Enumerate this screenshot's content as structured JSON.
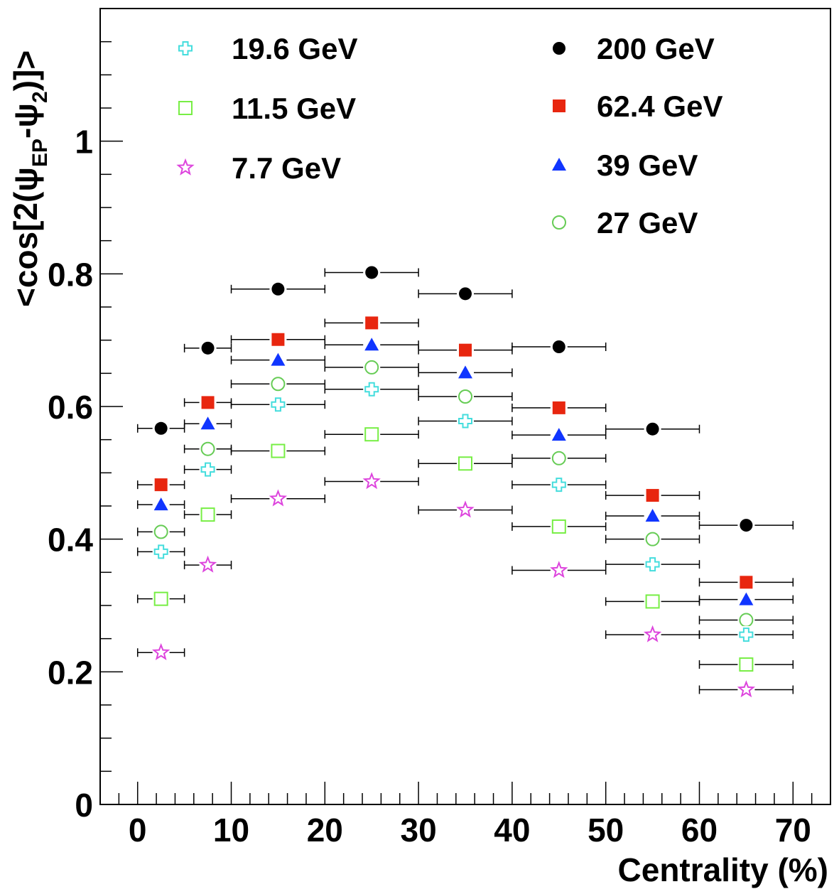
{
  "chart_data": {
    "type": "scatter",
    "x_bin_edges": [
      0,
      5,
      10,
      20,
      30,
      40,
      50,
      60,
      70
    ],
    "x": [
      2.5,
      7.5,
      15,
      25,
      35,
      45,
      55,
      65
    ],
    "xlim": [
      -4,
      74
    ],
    "ylim": [
      0,
      1.2
    ],
    "xticks": [
      0,
      10,
      20,
      30,
      40,
      50,
      60,
      70
    ],
    "xtick_labels": [
      "0",
      "10",
      "20",
      "30",
      "40",
      "50",
      "60",
      "70"
    ],
    "yticks": [
      0,
      0.2,
      0.4,
      0.6,
      0.8,
      1.0
    ],
    "ytick_labels": [
      "0",
      "0.2",
      "0.4",
      "0.6",
      "0.8",
      "1"
    ],
    "xlabel": "Centrality (%)",
    "ylabel": {
      "prefix": "<cos[2(ψ",
      "sub1": "EP",
      "mid": "-ψ",
      "sub2": "2",
      "suffix": ")]>"
    },
    "grid": false,
    "legend_placement": "top",
    "series": [
      {
        "name": "200 GeV",
        "marker": "circle-filled",
        "color": "#000000",
        "values": [
          0.567,
          0.688,
          0.777,
          0.802,
          0.77,
          0.69,
          0.566,
          0.421
        ]
      },
      {
        "name": "62.4 GeV",
        "marker": "square-filled",
        "color": "#e8260f",
        "values": [
          0.482,
          0.606,
          0.701,
          0.726,
          0.685,
          0.598,
          0.466,
          0.335
        ]
      },
      {
        "name": "39 GeV",
        "marker": "triangle-filled",
        "color": "#1035ff",
        "values": [
          0.452,
          0.574,
          0.67,
          0.693,
          0.651,
          0.557,
          0.435,
          0.309
        ]
      },
      {
        "name": "27 GeV",
        "marker": "circle-open",
        "color": "#66cc55",
        "values": [
          0.411,
          0.536,
          0.634,
          0.659,
          0.615,
          0.522,
          0.4,
          0.278
        ]
      },
      {
        "name": "19.6 GeV",
        "marker": "cross-open",
        "color": "#44dddd",
        "values": [
          0.381,
          0.505,
          0.603,
          0.626,
          0.578,
          0.482,
          0.362,
          0.256
        ]
      },
      {
        "name": "11.5 GeV",
        "marker": "square-open",
        "color": "#77ee44",
        "values": [
          0.31,
          0.437,
          0.533,
          0.558,
          0.514,
          0.419,
          0.306,
          0.211
        ]
      },
      {
        "name": "7.7 GeV",
        "marker": "star-open",
        "color": "#dd44dd",
        "values": [
          0.229,
          0.361,
          0.461,
          0.487,
          0.444,
          0.353,
          0.256,
          0.173
        ]
      }
    ],
    "legend_left": [
      "19.6 GeV",
      "11.5 GeV",
      "7.7 GeV"
    ],
    "legend_right": [
      "200 GeV",
      "62.4 GeV",
      "39 GeV",
      "27 GeV"
    ]
  }
}
